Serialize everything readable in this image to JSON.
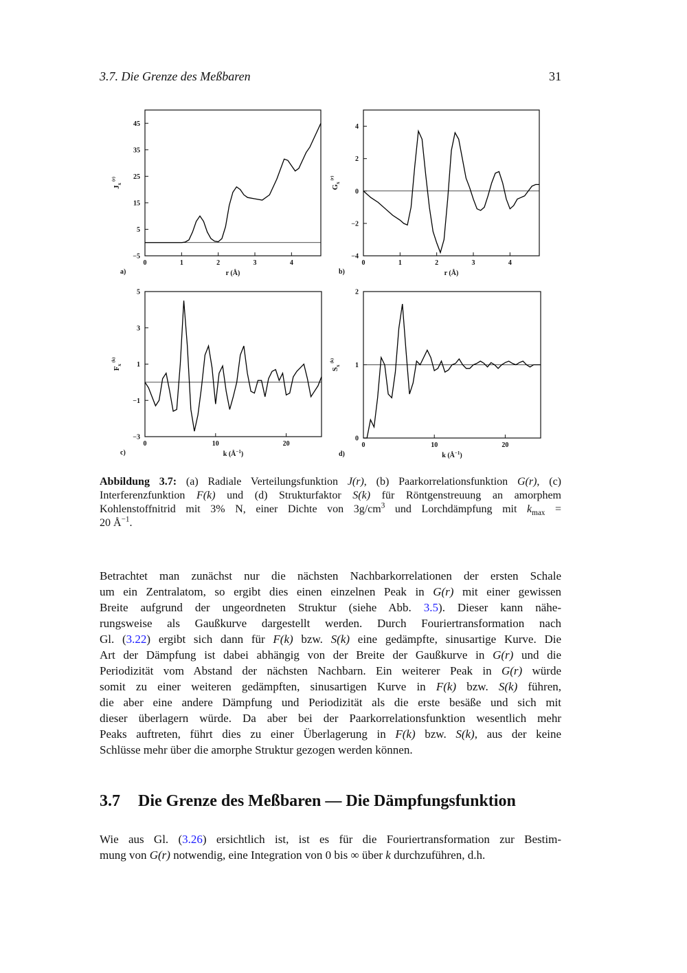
{
  "header": {
    "title": "3.7. Die Grenze des Meßbaren",
    "page": "31"
  },
  "chart_data": [
    {
      "type": "line",
      "panel": "a)",
      "y_label": {
        "main": "J",
        "sub": "x",
        "sup": "(r)"
      },
      "x_label": [
        {
          "text": "r (Å)"
        }
      ],
      "x": [
        0,
        0.5,
        1,
        1.1,
        1.2,
        1.3,
        1.4,
        1.5,
        1.6,
        1.7,
        1.8,
        1.9,
        2.0,
        2.1,
        2.2,
        2.3,
        2.4,
        2.5,
        2.6,
        2.7,
        2.8,
        3.0,
        3.2,
        3.4,
        3.6,
        3.8,
        3.9,
        4.0,
        4.1,
        4.2,
        4.3,
        4.4,
        4.5,
        4.6,
        4.7,
        4.8
      ],
      "values": [
        0,
        0,
        0,
        0.2,
        1,
        4,
        8,
        10,
        8,
        4,
        1.5,
        0.5,
        0.3,
        1.5,
        6,
        14,
        19,
        21,
        20,
        18,
        17,
        16.5,
        16,
        18,
        24,
        31.5,
        31,
        29,
        27,
        28,
        31,
        34,
        36,
        39,
        42,
        45
      ],
      "color": "#000000",
      "reference_line": 0,
      "xlim": [
        0,
        4.8
      ],
      "ylim": [
        -5,
        50
      ],
      "xticks": [
        0,
        1,
        2,
        3,
        4
      ],
      "yticks": [
        {
          "value": -5,
          "label": "−5"
        },
        5,
        15,
        25,
        35,
        45
      ]
    },
    {
      "type": "line",
      "panel": "b)",
      "y_label": {
        "main": "G",
        "sub": "x",
        "sup": "(r)"
      },
      "x_label": [
        {
          "text": "r (Å)"
        }
      ],
      "x": [
        0,
        0.2,
        0.4,
        0.6,
        0.8,
        1.0,
        1.1,
        1.2,
        1.3,
        1.4,
        1.5,
        1.6,
        1.7,
        1.8,
        1.9,
        2.0,
        2.1,
        2.2,
        2.3,
        2.4,
        2.5,
        2.6,
        2.7,
        2.8,
        2.9,
        3.0,
        3.1,
        3.2,
        3.3,
        3.4,
        3.5,
        3.6,
        3.7,
        3.8,
        3.9,
        4.0,
        4.1,
        4.2,
        4.3,
        4.4,
        4.5,
        4.6,
        4.7,
        4.8
      ],
      "values": [
        0,
        -0.4,
        -0.7,
        -1.1,
        -1.5,
        -1.8,
        -2.0,
        -2.1,
        -1.0,
        1.5,
        3.7,
        3.2,
        1.0,
        -1.0,
        -2.5,
        -3.2,
        -3.8,
        -3.0,
        -0.5,
        2.5,
        3.6,
        3.2,
        2.0,
        0.8,
        0.2,
        -0.5,
        -1.1,
        -1.2,
        -1.0,
        -0.3,
        0.5,
        1.1,
        1.2,
        0.5,
        -0.5,
        -1.1,
        -0.9,
        -0.5,
        -0.4,
        -0.3,
        0,
        0.3,
        0.4,
        0.4
      ],
      "color": "#000000",
      "reference_line": 0,
      "xlim": [
        0,
        4.8
      ],
      "ylim": [
        -4,
        5
      ],
      "xticks": [
        0,
        1,
        2,
        3,
        4
      ],
      "yticks": [
        {
          "value": -4,
          "label": "−4"
        },
        {
          "value": -2,
          "label": "−2"
        },
        0,
        2,
        4
      ]
    },
    {
      "type": "line",
      "panel": "c)",
      "y_label": {
        "main": "F",
        "sub": "x",
        "sup": "(k)"
      },
      "x_label": [
        {
          "text": "k (Å"
        },
        {
          "text": "−1",
          "style": "sup"
        },
        {
          "text": ")"
        }
      ],
      "x": [
        0,
        0.5,
        1,
        1.5,
        2,
        2.5,
        3,
        3.5,
        4,
        4.5,
        5,
        5.5,
        6,
        6.5,
        7,
        7.5,
        8,
        8.5,
        9,
        9.5,
        10,
        10.5,
        11,
        11.5,
        12,
        12.5,
        13,
        13.5,
        14,
        14.5,
        15,
        15.5,
        16,
        16.5,
        17,
        17.5,
        18,
        18.5,
        19,
        19.5,
        20,
        20.5,
        21,
        21.5,
        22,
        22.5,
        23,
        23.5,
        24,
        24.5,
        25
      ],
      "values": [
        0,
        -0.3,
        -0.8,
        -1.3,
        -1.0,
        0.2,
        0.5,
        -0.5,
        -1.6,
        -1.5,
        1.0,
        4.5,
        2.0,
        -1.5,
        -2.7,
        -1.8,
        -0.3,
        1.5,
        2.0,
        0.8,
        -1.2,
        0.5,
        0.9,
        -0.5,
        -1.5,
        -0.8,
        0.0,
        1.5,
        2.0,
        0.5,
        -0.5,
        -0.6,
        0.1,
        0.1,
        -0.8,
        0.2,
        0.6,
        0.7,
        0.1,
        0.5,
        -0.7,
        -0.6,
        0.3,
        0.6,
        0.8,
        1.0,
        0.2,
        -0.8,
        -0.5,
        -0.2,
        0.3
      ],
      "color": "#000000",
      "reference_line": 0,
      "xlim": [
        0,
        25
      ],
      "ylim": [
        -3,
        5
      ],
      "xticks": [
        0,
        10,
        20
      ],
      "yticks": [
        {
          "value": -3,
          "label": "−3"
        },
        {
          "value": -1,
          "label": "−1"
        },
        1,
        3,
        5
      ]
    },
    {
      "type": "line",
      "panel": "d)",
      "y_label": {
        "main": "S",
        "sub": "x",
        "sup": "(k)"
      },
      "x_label": [
        {
          "text": "k (Å"
        },
        {
          "text": "−1",
          "style": "sup"
        },
        {
          "text": ")"
        }
      ],
      "x": [
        0,
        0.5,
        1,
        1.5,
        2,
        2.5,
        3,
        3.5,
        4,
        4.5,
        5,
        5.5,
        6,
        6.5,
        7,
        7.5,
        8,
        8.5,
        9,
        9.5,
        10,
        10.5,
        11,
        11.5,
        12,
        12.5,
        13,
        13.5,
        14,
        14.5,
        15,
        15.5,
        16,
        16.5,
        17,
        17.5,
        18,
        18.5,
        19,
        19.5,
        20,
        20.5,
        21,
        21.5,
        22,
        22.5,
        23,
        23.5,
        24,
        24.5,
        25
      ],
      "values": [
        0,
        0,
        0.25,
        0.15,
        0.55,
        1.1,
        1.0,
        0.6,
        0.55,
        0.9,
        1.5,
        1.83,
        1.2,
        0.6,
        0.75,
        1.05,
        1.0,
        1.1,
        1.2,
        1.1,
        0.92,
        0.95,
        1.05,
        0.9,
        0.93,
        1.0,
        1.02,
        1.08,
        1.0,
        0.95,
        0.95,
        1.0,
        1.02,
        1.05,
        1.02,
        0.97,
        1.03,
        1.0,
        0.95,
        1.0,
        1.03,
        1.05,
        1.02,
        1.0,
        1.03,
        1.05,
        1.0,
        0.97,
        1.0,
        1.0,
        1.0
      ],
      "color": "#000000",
      "reference_line": 1,
      "xlim": [
        0,
        25
      ],
      "ylim": [
        0,
        2
      ],
      "xticks": [
        0,
        10,
        20
      ],
      "yticks": [
        0,
        1,
        2
      ]
    }
  ],
  "caption": {
    "lines": [
      [
        {
          "text": "Abbildung 3.7:",
          "style": "b"
        },
        " (a) Radiale Verteilungsfunktion ",
        {
          "text": "J(r)",
          "style": "i"
        },
        ", (b) Paarkorrelationsfunktion ",
        {
          "text": "G(r)",
          "style": "i"
        },
        ", (c)"
      ],
      [
        "Interferenzfunktion ",
        {
          "text": "F(k)",
          "style": "i"
        },
        " und (d) Strukturfaktor ",
        {
          "text": "S(k)",
          "style": "i"
        },
        " für Röntgenstreuung an amorphem"
      ],
      [
        "Kohlenstoffnitrid mit 3% N, einer Dichte von 3g/cm",
        {
          "text": "3",
          "style": "sup"
        },
        " und Lorchdämpfung mit ",
        {
          "text": "k",
          "style": "i"
        },
        {
          "text": "max",
          "style": "sub"
        },
        " ="
      ],
      [
        "20 Å",
        {
          "text": "−1",
          "style": "sup"
        },
        "."
      ]
    ]
  },
  "paragraphs": [
    {
      "lines": [
        [
          "Betrachtet man zunächst nur die nächsten Nachbarkorrelationen der ersten Schale"
        ],
        [
          "um ein Zentralatom, so ergibt dies einen einzelnen Peak in ",
          {
            "text": "G(r)",
            "style": "i"
          },
          " mit einer gewissen"
        ],
        [
          "Breite aufgrund der ungeordneten Struktur (siehe Abb. ",
          {
            "text": "3.5",
            "style": "link"
          },
          "). Dieser kann nähe-"
        ],
        [
          "rungsweise als Gaußkurve dargestellt werden. Durch Fouriertransformation nach"
        ],
        [
          "Gl. (",
          {
            "text": "3.22",
            "style": "link"
          },
          ") ergibt sich dann für ",
          {
            "text": "F(k)",
            "style": "i"
          },
          " bzw. ",
          {
            "text": "S(k)",
            "style": "i"
          },
          " eine gedämpfte, sinusartige Kurve. Die"
        ],
        [
          "Art der Dämpfung ist dabei abhängig von der Breite der Gaußkurve in ",
          {
            "text": "G(r)",
            "style": "i"
          },
          " und die"
        ],
        [
          "Periodizität vom Abstand der nächsten Nachbarn. Ein weiterer Peak in ",
          {
            "text": "G(r)",
            "style": "i"
          },
          " würde"
        ],
        [
          "somit zu einer weiteren gedämpften, sinusartigen Kurve in ",
          {
            "text": "F(k)",
            "style": "i"
          },
          " bzw. ",
          {
            "text": "S(k)",
            "style": "i"
          },
          " führen,"
        ],
        [
          "die aber eine andere Dämpfung und Periodizität als die erste besäße und sich mit"
        ],
        [
          "dieser überlagern würde. Da aber bei der Paarkorrelationsfunktion wesentlich mehr"
        ],
        [
          "Peaks auftreten, führt dies zu einer Überlagerung in ",
          {
            "text": "F(k)",
            "style": "i"
          },
          " bzw. ",
          {
            "text": "S(k)",
            "style": "i"
          },
          ", aus der keine"
        ],
        [
          "Schlüsse mehr über die amorphe Struktur gezogen werden können."
        ]
      ]
    },
    {
      "lines": [
        [
          "Wie aus Gl. (",
          {
            "text": "3.26",
            "style": "link"
          },
          ") ersichtlich ist, ist es für die Fouriertransformation zur Bestim-"
        ],
        [
          "mung von ",
          {
            "text": "G(r)",
            "style": "i"
          },
          " notwendig, eine Integration von 0 bis ∞ über ",
          {
            "text": "k",
            "style": "i"
          },
          " durchzuführen, d.h."
        ]
      ]
    }
  ],
  "section": {
    "number": "3.7",
    "title": "Die Grenze des Meßbaren — Die Dämpfungsfunktion"
  }
}
